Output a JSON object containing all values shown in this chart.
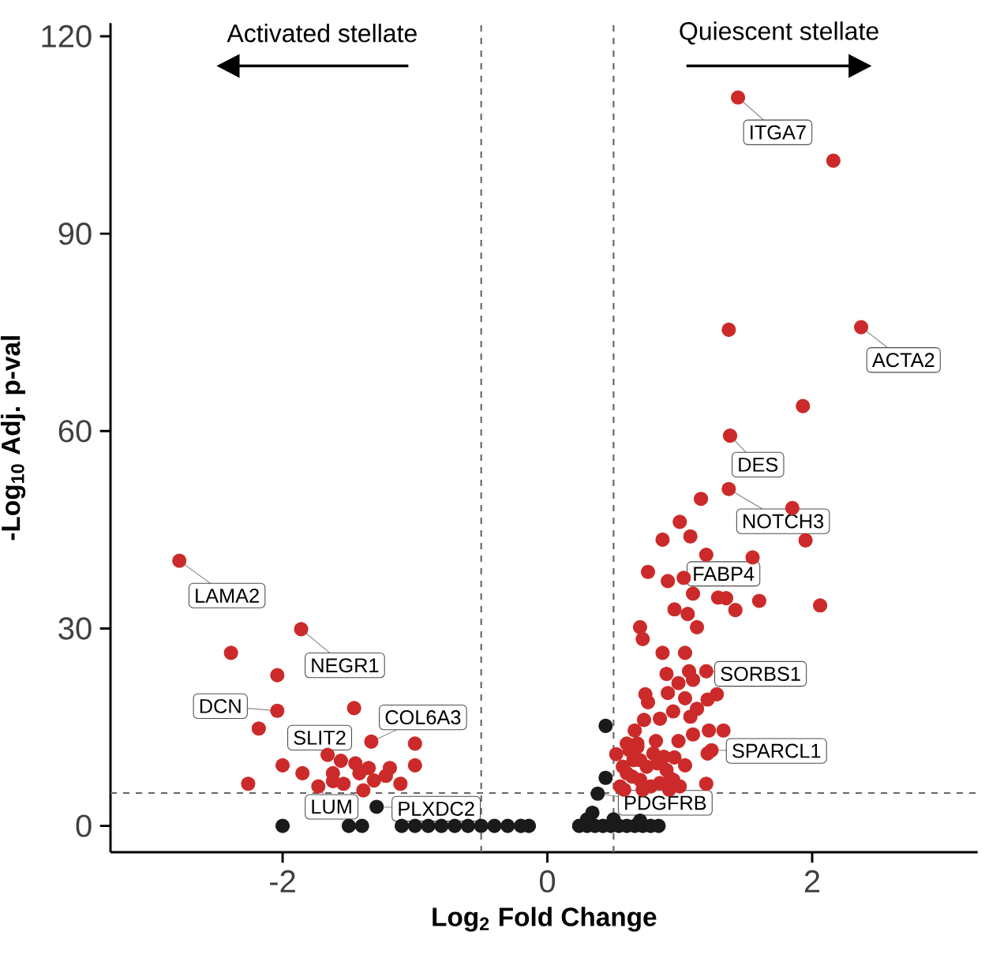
{
  "chart_data": {
    "type": "scatter",
    "xlabel": "Log$_{2}$ Fold Change",
    "ylabel": "-Log$_{10}$ Adj. p-val",
    "xlim": [
      -3.3,
      3.25
    ],
    "ylim": [
      -4,
      122
    ],
    "xticks": [
      -2,
      0,
      2
    ],
    "yticks": [
      0,
      30,
      60,
      90,
      120
    ],
    "marker": "circle",
    "series": [
      {
        "color": "#cc2a2a",
        "x": [
          -2.78,
          -1.86,
          -2.39,
          -2.04,
          -2.04,
          -1.46,
          -2.18,
          -1.33,
          -1.0,
          -2.0,
          -1.0,
          -1.66,
          -1.56,
          -1.45,
          -1.35,
          -1.19,
          -1.85,
          -1.62,
          -1.42,
          -1.22,
          -1.62,
          -1.54,
          -1.31,
          -1.11,
          -1.39,
          -2.26,
          -1.73,
          1.44,
          2.16,
          1.37,
          2.37,
          1.93,
          1.38,
          1.37,
          1.16,
          1.85,
          1.0,
          1.08,
          0.87,
          1.95,
          1.2,
          1.55,
          0.76,
          0.91,
          1.03,
          1.1,
          1.29,
          1.35,
          1.6,
          2.06,
          0.96,
          1.06,
          1.42,
          1.13,
          0.7,
          0.72,
          0.87,
          1.04,
          0.9,
          1.07,
          1.2,
          0.99,
          1.1,
          0.74,
          0.91,
          1.04,
          1.28,
          0.76,
          0.95,
          1.13,
          1.08,
          1.21,
          0.73,
          0.85,
          1.22,
          1.33,
          1.1,
          0.99,
          0.66,
          0.68,
          0.82,
          1.24,
          1.21,
          0.96,
          0.52,
          1.04,
          1.2,
          0.93,
          0.55,
          0.6,
          0.65,
          0.7,
          0.75,
          0.8,
          0.85,
          0.9,
          0.58,
          0.62,
          0.72,
          0.88,
          0.95,
          1.0,
          0.78,
          0.68,
          0.92,
          0.64,
          0.57,
          0.83,
          0.7,
          0.6
        ],
        "values": [
          40.3,
          29.9,
          26.3,
          22.9,
          17.5,
          17.9,
          14.8,
          12.8,
          12.5,
          9.2,
          9.2,
          10.8,
          9.9,
          9.5,
          8.8,
          8.8,
          8.0,
          8.0,
          8.0,
          7.6,
          6.8,
          6.4,
          6.9,
          6.4,
          5.4,
          6.4,
          6.0,
          110.7,
          101.1,
          75.4,
          75.8,
          63.8,
          59.3,
          51.2,
          49.7,
          48.3,
          46.2,
          44.0,
          43.5,
          43.4,
          41.2,
          40.8,
          38.6,
          37.2,
          37.7,
          35.3,
          34.7,
          34.6,
          34.2,
          33.5,
          32.9,
          32.2,
          32.8,
          30.2,
          30.2,
          28.4,
          26.3,
          26.3,
          23.1,
          23.5,
          23.5,
          21.7,
          22.2,
          20.0,
          20.2,
          19.4,
          20.0,
          18.8,
          17.4,
          17.8,
          16.6,
          19.2,
          16.1,
          16.3,
          14.5,
          14.5,
          13.9,
          12.9,
          14.5,
          12.5,
          12.9,
          11.5,
          11.0,
          10.4,
          10.9,
          9.2,
          6.4,
          7.2,
          6.0,
          8.0,
          10.0,
          7.0,
          9.0,
          11.0,
          6.5,
          8.5,
          5.5,
          11.5,
          5.5,
          10.5,
          7.0,
          6.0,
          6.0,
          12.0,
          5.5,
          7.5,
          9.0,
          9.5,
          10.0,
          12.5
        ]
      },
      {
        "color": "#1a1a1a",
        "x": [
          -2.0,
          -1.29,
          -1.5,
          -1.4,
          -1.1,
          -1.0,
          -0.9,
          -0.8,
          -0.7,
          -0.6,
          -0.5,
          -0.4,
          -0.3,
          -0.2,
          -0.14,
          0.44,
          0.44,
          0.38,
          0.34,
          0.24,
          0.3,
          0.36,
          0.42,
          0.48,
          0.54,
          0.6,
          0.66,
          0.72,
          0.78,
          0.84,
          0.3,
          0.5,
          0.7
        ],
        "values": [
          0,
          2.9,
          0,
          0,
          0,
          0,
          0,
          0,
          0,
          0,
          0,
          0,
          0,
          0,
          0,
          15.2,
          7.3,
          4.9,
          2.0,
          0,
          0,
          0,
          0,
          0,
          0,
          0,
          0,
          0,
          0,
          0,
          1.0,
          1.0,
          0.8
        ]
      }
    ],
    "ref_lines": [
      {
        "axis": "x",
        "value": -0.5,
        "line_style": "dashed",
        "color": "#666666"
      },
      {
        "axis": "x",
        "value": 0.5,
        "line_style": "dashed",
        "color": "#666666"
      },
      {
        "axis": "y",
        "value": 5,
        "line_style": "dashed",
        "color": "#666666"
      }
    ],
    "annotations": [
      "Activated stellate",
      "Quiescent stellate",
      {
        "text": "LAMA2",
        "x": -2.78,
        "y": 40.3
      },
      {
        "text": "NEGR1",
        "x": -1.86,
        "y": 29.9
      },
      {
        "text": "DCN",
        "x": -2.04,
        "y": 17.5
      },
      {
        "text": "COL6A3",
        "x": -1.33,
        "y": 12.8
      },
      {
        "text": "SLIT2",
        "x": -1.66,
        "y": 10.8
      },
      {
        "text": "LUM",
        "x": -1.73,
        "y": 6.0
      },
      {
        "text": "PLXDC2",
        "x": -1.29,
        "y": 2.9
      },
      {
        "text": "ITGA7",
        "x": 1.44,
        "y": 110.7
      },
      {
        "text": "ACTA2",
        "x": 2.37,
        "y": 75.8
      },
      {
        "text": "DES",
        "x": 1.38,
        "y": 59.3
      },
      {
        "text": "NOTCH3",
        "x": 1.37,
        "y": 51.2
      },
      {
        "text": "FABP4",
        "x": 1.03,
        "y": 37.7
      },
      {
        "text": "SORBS1",
        "x": 1.2,
        "y": 23.5
      },
      {
        "text": "SPARCL1",
        "x": 1.24,
        "y": 11.5
      },
      {
        "text": "PDGFRB",
        "x": 0.38,
        "y": 4.9
      }
    ]
  }
}
